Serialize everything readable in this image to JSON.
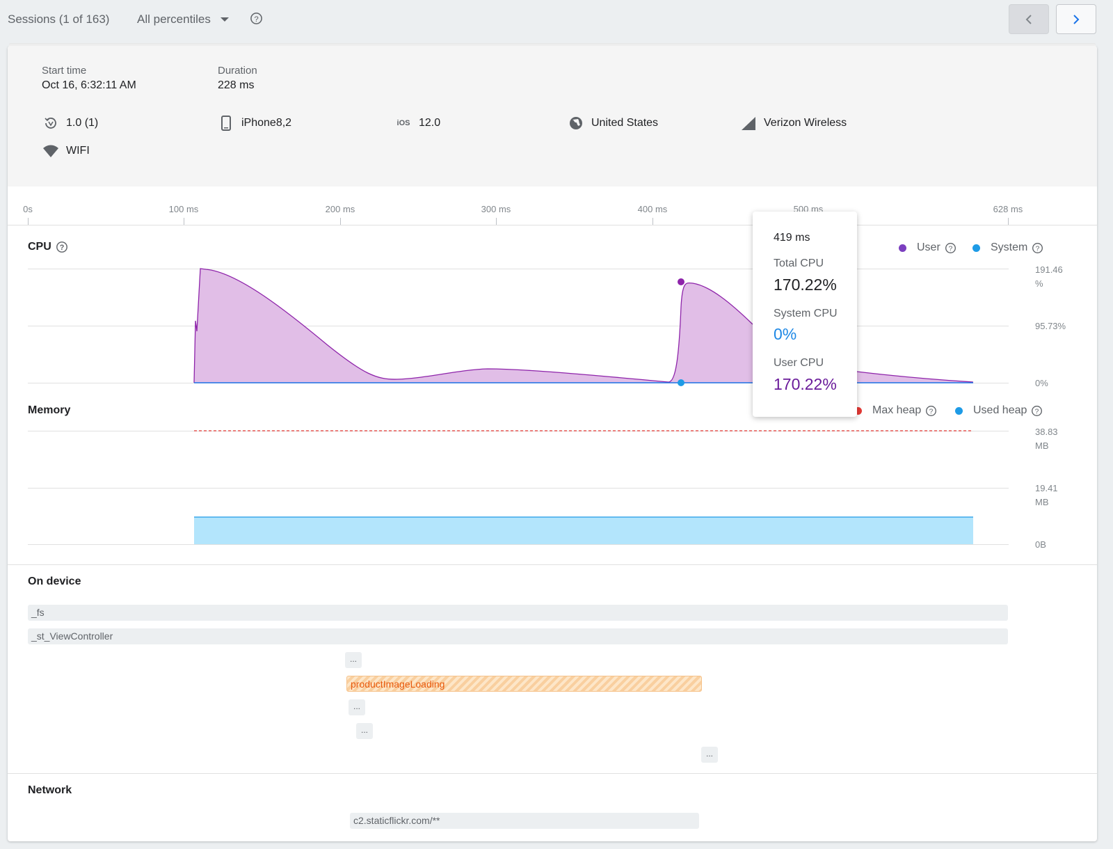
{
  "topbar": {
    "sessions_label": "Sessions (1 of 163)",
    "percentile_select": "All percentiles"
  },
  "session": {
    "start_label": "Start time",
    "start_value": "Oct 16, 6:32:11 AM",
    "duration_label": "Duration",
    "duration_value": "228 ms",
    "app_version": "1.0 (1)",
    "device": "iPhone8,2",
    "os_badge": "iOS",
    "os_version": "12.0",
    "country": "United States",
    "carrier": "Verizon Wireless",
    "network_type": "WIFI"
  },
  "timeline": {
    "ticks": [
      "0s",
      "100 ms",
      "200 ms",
      "300 ms",
      "400 ms",
      "500 ms",
      "628 ms"
    ]
  },
  "cpu": {
    "title": "CPU",
    "legend": {
      "user": "User",
      "system": "System"
    },
    "axis": {
      "top_value": "191.46",
      "top_unit": "%",
      "mid": "95.73%",
      "zero": "0%"
    }
  },
  "memory": {
    "title": "Memory",
    "legend": {
      "max_heap": "Max heap",
      "used_heap": "Used heap"
    },
    "axis": {
      "top_value": "38.83",
      "top_unit": "MB",
      "mid_value": "19.41",
      "mid_unit": "MB",
      "zero": "0B"
    }
  },
  "on_device": {
    "title": "On device",
    "traces": {
      "fs": "_fs",
      "view_controller": "_st_ViewController",
      "product_image": "productImageLoading",
      "more": "..."
    }
  },
  "network": {
    "title": "Network",
    "request": "c2.staticflickr.com/**"
  },
  "tooltip": {
    "time": "419 ms",
    "total_label": "Total CPU",
    "total_value": "170.22%",
    "system_label": "System CPU",
    "system_value": "0%",
    "user_label": "User CPU",
    "user_value": "170.22%"
  },
  "colors": {
    "user_cpu": "#7b3fbf",
    "cpu_fill": "#e1bee7",
    "system_cpu": "#1e9be6",
    "max_heap": "#e53935",
    "used_heap_fill": "#b3e5fc",
    "span_highlight": "#fbd9b0"
  },
  "icons": [
    "help-icon",
    "chevron-left-icon",
    "chevron-right-icon",
    "app-version-icon",
    "phone-icon",
    "globe-icon",
    "signal-icon",
    "wifi-icon",
    "caret-down-icon"
  ]
}
